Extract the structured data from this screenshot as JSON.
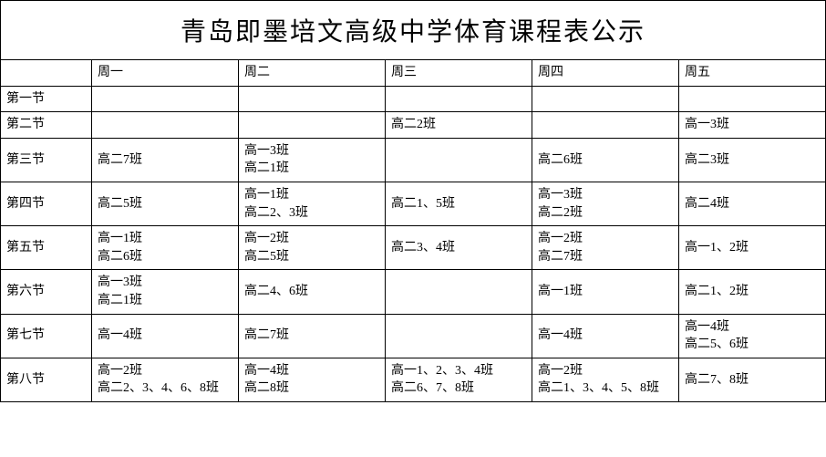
{
  "title": "青岛即墨培文高级中学体育课程表公示",
  "days": [
    "周一",
    "周二",
    "周三",
    "周四",
    "周五"
  ],
  "periods": [
    "第一节",
    "第二节",
    "第三节",
    "第四节",
    "第五节",
    "第六节",
    "第七节",
    "第八节"
  ],
  "cells": {
    "r0": [
      "",
      "",
      "",
      "",
      ""
    ],
    "r1": [
      "",
      "",
      "高二2班",
      "",
      "高一3班"
    ],
    "r2": [
      "高二7班",
      "高一3班\n高二1班",
      "",
      "高二6班",
      "高二3班"
    ],
    "r3": [
      "高二5班",
      "高一1班\n高二2、3班",
      "高二1、5班",
      "高一3班\n高二2班",
      "高二4班"
    ],
    "r4": [
      "高一1班\n高二6班",
      "高一2班\n高二5班",
      "高二3、4班",
      "高一2班\n高二7班",
      "高一1、2班"
    ],
    "r5": [
      "高一3班\n高二1班",
      "高二4、6班",
      "",
      "高一1班",
      "高二1、2班"
    ],
    "r6": [
      "高一4班",
      "高二7班",
      "",
      "高一4班",
      "高一4班\n高二5、6班"
    ],
    "r7": [
      "高一2班\n高二2、3、4、6、8班",
      "高一4班\n高二8班",
      "高一1、2、3、4班\n高二6、7、8班",
      "高一2班\n高二1、3、4、5、8班",
      "高二7、8班"
    ]
  },
  "colors": {
    "border": "#000000",
    "background": "#ffffff",
    "text": "#000000"
  }
}
